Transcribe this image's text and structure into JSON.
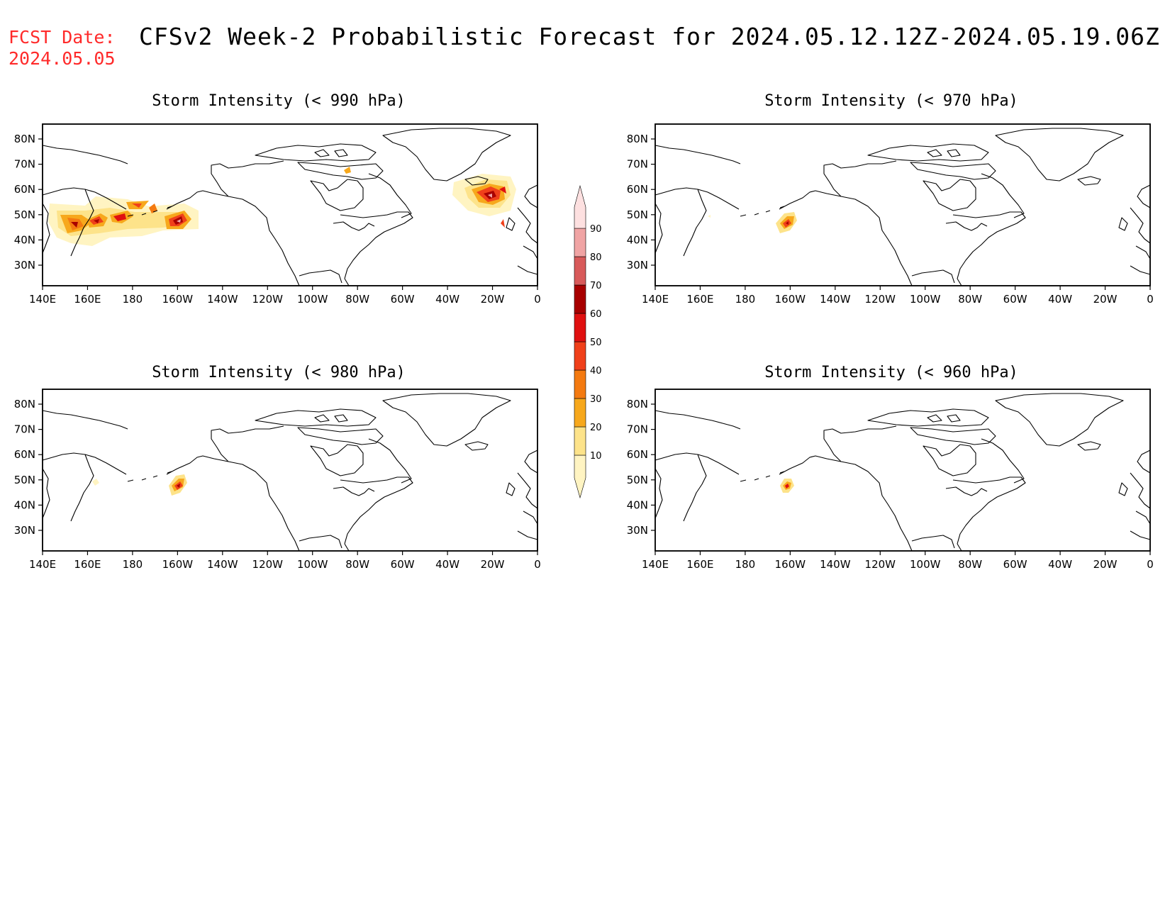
{
  "header": {
    "fcst_label": "FCST Date:",
    "fcst_date": "2024.05.05",
    "title": "CFSv2 Week-2 Probabilistic Forecast for 2024.05.12.12Z-2024.05.19.06Z"
  },
  "axes": {
    "lat_ticks": [
      "80N",
      "70N",
      "60N",
      "50N",
      "40N",
      "30N"
    ],
    "lon_ticks": [
      "140E",
      "160E",
      "180",
      "160W",
      "140W",
      "120W",
      "100W",
      "80W",
      "60W",
      "40W",
      "20W",
      "0"
    ]
  },
  "panels": [
    {
      "id": "p990",
      "title": "Storm Intensity (< 990 hPa)"
    },
    {
      "id": "p970",
      "title": "Storm Intensity (< 970 hPa)"
    },
    {
      "id": "p980",
      "title": "Storm Intensity (< 980 hPa)"
    },
    {
      "id": "p960",
      "title": "Storm Intensity (< 960 hPa)"
    }
  ],
  "colorbar": {
    "levels": [
      "10",
      "20",
      "30",
      "40",
      "50",
      "60",
      "70",
      "80",
      "90"
    ],
    "colors": [
      "#fff4c2",
      "#fde38a",
      "#f7a81c",
      "#f47a10",
      "#f0401a",
      "#e01010",
      "#a80000",
      "#d85a5a",
      "#f0a4a4",
      "#fde0e0"
    ]
  }
}
